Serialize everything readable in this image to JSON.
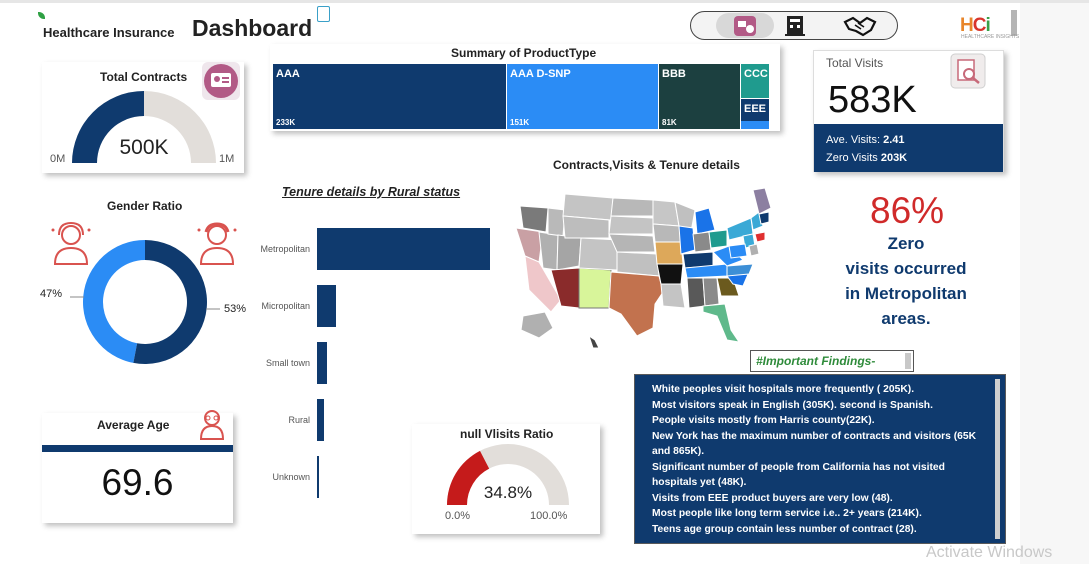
{
  "header": {
    "title_small": "Healthcare Insurance",
    "title_big": "Dashboard",
    "logo_text": "HCi",
    "logo_subtext": "HEALTHCARE INSIGHTS"
  },
  "nav": {
    "icons": [
      "id-card-icon",
      "building-icon",
      "handshake-icon"
    ]
  },
  "total_contracts": {
    "title": "Total Contracts",
    "value_text": "500K",
    "min_label": "0M",
    "max_label": "1M",
    "fraction": 0.5
  },
  "treemap": {
    "title": "Summary of ProductType",
    "items": [
      {
        "label": "AAA",
        "value_text": "233K",
        "color": "#0f3a6e"
      },
      {
        "label": "AAA D-SNP",
        "value_text": "151K",
        "color": "#2b8cf5"
      },
      {
        "label": "BBB",
        "value_text": "81K",
        "color": "#1c4040"
      },
      {
        "label": "CCC",
        "value_text": "",
        "color": "#1f9b8e"
      },
      {
        "label": "EEE",
        "value_text": "",
        "color": "#0f3a6e"
      }
    ]
  },
  "total_visits": {
    "title": "Total Visits",
    "value_text": "583K",
    "ave_label": "Ave. Visits:",
    "ave_value": "2.41",
    "zero_label": "Zero Visits",
    "zero_value": "203K"
  },
  "gender_ratio": {
    "title": "Gender Ratio",
    "left_pct": "47%",
    "right_pct": "53%",
    "female_fraction": 0.47,
    "colors": [
      "#2b8cf5",
      "#0f3a6e"
    ]
  },
  "tenure": {
    "title": "Tenure details by Rural status",
    "categories": [
      "Metropolitan",
      "Micropolitan",
      "Small town",
      "Rural",
      "Unknown"
    ],
    "values": [
      100,
      11,
      6,
      4,
      1
    ]
  },
  "map": {
    "title": "Contracts,Visits & Tenure details"
  },
  "highlight": {
    "percent": "86%",
    "line1": "Zero",
    "line2": "visits occurred",
    "line3": "in Metropolitan",
    "line4": "areas."
  },
  "average_age": {
    "title": "Average Age",
    "value_text": "69.6"
  },
  "null_visits": {
    "title": "null Vlisits Ratio",
    "value_text": "34.8%",
    "min_label": "0.0%",
    "max_label": "100.0%",
    "fraction": 0.348
  },
  "findings": {
    "tag": "#Important Findings-",
    "lines": [
      "White peoples visit hospitals more frequently ( 205K).",
      "Most visitors speak in English (305K). second is Spanish.",
      " People visits mostly from Harris county(22K).",
      "New York has the maximum number of contracts and visitors (65K and 865K).",
      "Significant number of people from California has not visited hospitals yet (48K).",
      "Visits from EEE product buyers are very low (48).",
      "Most people like long term service i.e.. 2+ years (214K).",
      "Teens age group contain less number of contract (28)."
    ]
  },
  "watermark": "Activate Windows"
}
